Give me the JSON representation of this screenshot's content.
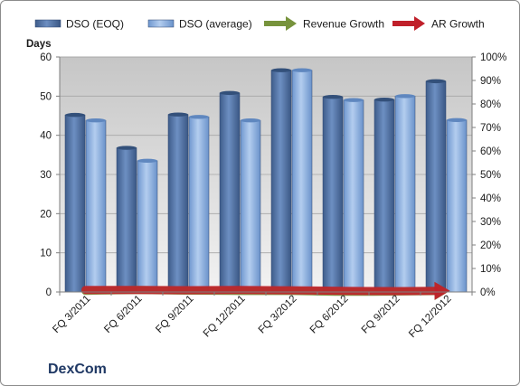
{
  "company": "DexCom",
  "chart_data": {
    "type": "bar",
    "categories": [
      "FQ 3/2011",
      "FQ 6/2011",
      "FQ 9/2011",
      "FQ 12/2011",
      "FQ 3/2012",
      "FQ 6/2012",
      "FQ 9/2012",
      "FQ 12/2012"
    ],
    "ylabel": "Days",
    "ylim": [
      0,
      60
    ],
    "y_ticks": [
      "0",
      "10",
      "20",
      "30",
      "40",
      "50",
      "60"
    ],
    "y2lim": [
      0,
      100
    ],
    "y2_ticks": [
      "0%",
      "10%",
      "20%",
      "30%",
      "40%",
      "50%",
      "60%",
      "70%",
      "80%",
      "90%",
      "100%"
    ],
    "grid": true,
    "legend_position": "top",
    "series": [
      {
        "name": "DSO (EOQ)",
        "kind": "bar",
        "axis": "left",
        "color": "#4f6fa0",
        "values": [
          45.2,
          36.8,
          45.3,
          50.8,
          56.6,
          49.8,
          49.1,
          53.8
        ]
      },
      {
        "name": "DSO (average)",
        "kind": "bar",
        "axis": "left",
        "color": "#8fb3e0",
        "values": [
          43.8,
          33.5,
          44.7,
          43.8,
          56.6,
          49.0,
          50.0,
          43.9
        ]
      },
      {
        "name": "Revenue Growth",
        "kind": "line",
        "axis": "right",
        "color": "#77933c",
        "values": [
          0.48,
          0.82,
          0.58,
          0.44,
          0.41,
          0.08,
          0.21,
          0.45
        ]
      },
      {
        "name": "AR Growth",
        "kind": "line",
        "axis": "right",
        "color": "#c0202a",
        "values": [
          0.88,
          0.86,
          0.76,
          0.86,
          0.73,
          0.5,
          0.37,
          0.52
        ]
      }
    ]
  }
}
